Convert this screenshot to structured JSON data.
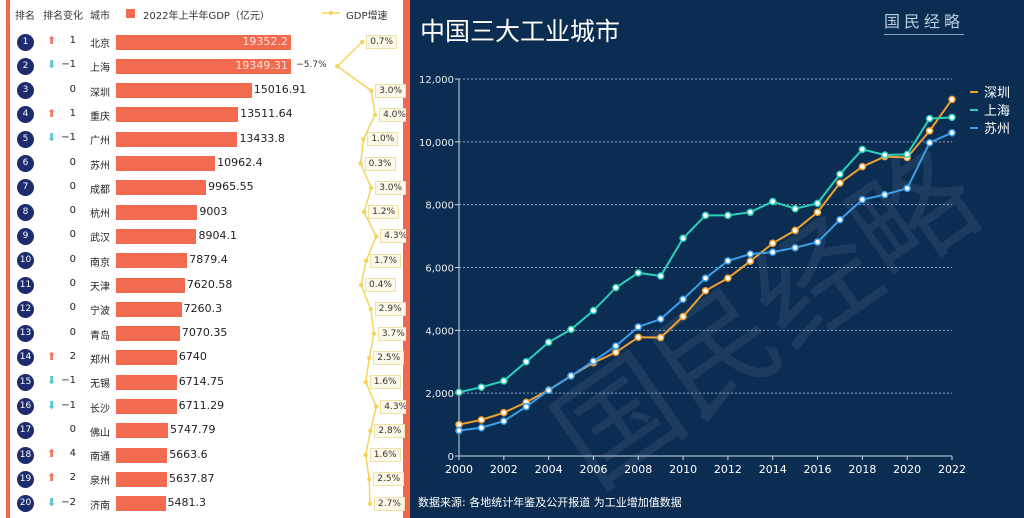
{
  "left": {
    "headers": {
      "rank": "排名",
      "change": "排名变化",
      "city": "城市",
      "gdp_legend": "2022年上半年GDP（亿元）",
      "growth_legend": "GDP增速"
    },
    "colors": {
      "bar": "#f26a50",
      "up": "#f07a60",
      "down": "#5bc8d8",
      "rank": "#1e2b6e",
      "growth": "#f5d45a"
    },
    "rows": [
      {
        "rank": "1",
        "dir": "up",
        "change": "1",
        "city": "北京",
        "gdp": 19352.2,
        "gdp_label": "19352.2",
        "growth": 0.7,
        "growth_label": "0.7%"
      },
      {
        "rank": "2",
        "dir": "down",
        "change": "−1",
        "city": "上海",
        "gdp": 19349.31,
        "gdp_label": "19349.31",
        "growth": -5.7,
        "growth_label": "−5.7%"
      },
      {
        "rank": "3",
        "dir": "none",
        "change": "0",
        "city": "深圳",
        "gdp": 15016.91,
        "gdp_label": "15016.91",
        "growth": 3.0,
        "growth_label": "3.0%"
      },
      {
        "rank": "4",
        "dir": "up",
        "change": "1",
        "city": "重庆",
        "gdp": 13511.64,
        "gdp_label": "13511.64",
        "growth": 4.0,
        "growth_label": "4.0%"
      },
      {
        "rank": "5",
        "dir": "down",
        "change": "−1",
        "city": "广州",
        "gdp": 13433.8,
        "gdp_label": "13433.8",
        "growth": 1.0,
        "growth_label": "1.0%"
      },
      {
        "rank": "6",
        "dir": "none",
        "change": "0",
        "city": "苏州",
        "gdp": 10962.4,
        "gdp_label": "10962.4",
        "growth": 0.3,
        "growth_label": "0.3%"
      },
      {
        "rank": "7",
        "dir": "none",
        "change": "0",
        "city": "成都",
        "gdp": 9965.55,
        "gdp_label": "9965.55",
        "growth": 3.0,
        "growth_label": "3.0%"
      },
      {
        "rank": "8",
        "dir": "none",
        "change": "0",
        "city": "杭州",
        "gdp": 9003,
        "gdp_label": "9003",
        "growth": 1.2,
        "growth_label": "1.2%"
      },
      {
        "rank": "9",
        "dir": "none",
        "change": "0",
        "city": "武汉",
        "gdp": 8904.1,
        "gdp_label": "8904.1",
        "growth": 4.3,
        "growth_label": "4.3%"
      },
      {
        "rank": "10",
        "dir": "none",
        "change": "0",
        "city": "南京",
        "gdp": 7879.4,
        "gdp_label": "7879.4",
        "growth": 1.7,
        "growth_label": "1.7%"
      },
      {
        "rank": "11",
        "dir": "none",
        "change": "0",
        "city": "天津",
        "gdp": 7620.58,
        "gdp_label": "7620.58",
        "growth": 0.4,
        "growth_label": "0.4%"
      },
      {
        "rank": "12",
        "dir": "none",
        "change": "0",
        "city": "宁波",
        "gdp": 7260.3,
        "gdp_label": "7260.3",
        "growth": 2.9,
        "growth_label": "2.9%"
      },
      {
        "rank": "13",
        "dir": "none",
        "change": "0",
        "city": "青岛",
        "gdp": 7070.35,
        "gdp_label": "7070.35",
        "growth": 3.7,
        "growth_label": "3.7%"
      },
      {
        "rank": "14",
        "dir": "up",
        "change": "2",
        "city": "郑州",
        "gdp": 6740,
        "gdp_label": "6740",
        "growth": 2.5,
        "growth_label": "2.5%"
      },
      {
        "rank": "15",
        "dir": "down",
        "change": "−1",
        "city": "无锡",
        "gdp": 6714.75,
        "gdp_label": "6714.75",
        "growth": 1.6,
        "growth_label": "1.6%"
      },
      {
        "rank": "16",
        "dir": "down",
        "change": "−1",
        "city": "长沙",
        "gdp": 6711.29,
        "gdp_label": "6711.29",
        "growth": 4.3,
        "growth_label": "4.3%"
      },
      {
        "rank": "17",
        "dir": "none",
        "change": "0",
        "city": "佛山",
        "gdp": 5747.79,
        "gdp_label": "5747.79",
        "growth": 2.8,
        "growth_label": "2.8%"
      },
      {
        "rank": "18",
        "dir": "up",
        "change": "4",
        "city": "南通",
        "gdp": 5663.6,
        "gdp_label": "5663.6",
        "growth": 1.6,
        "growth_label": "1.6%"
      },
      {
        "rank": "19",
        "dir": "up",
        "change": "2",
        "city": "泉州",
        "gdp": 5637.87,
        "gdp_label": "5637.87",
        "growth": 2.5,
        "growth_label": "2.5%"
      },
      {
        "rank": "20",
        "dir": "down",
        "change": "−2",
        "city": "济南",
        "gdp": 5481.3,
        "gdp_label": "5481.3",
        "growth": 2.7,
        "growth_label": "2.7%"
      }
    ]
  },
  "right": {
    "title": "中国三大工业城市",
    "logo": "国民经略",
    "source": "数据来源: 各地统计年鉴及公开报道  为工业增加值数据",
    "watermark": "国民经略"
  },
  "chart_data": {
    "type": "line",
    "title": "中国三大工业城市",
    "x": [
      2000,
      2001,
      2002,
      2003,
      2004,
      2005,
      2006,
      2007,
      2008,
      2009,
      2010,
      2011,
      2012,
      2013,
      2014,
      2015,
      2016,
      2017,
      2018,
      2019,
      2020,
      2021,
      2022
    ],
    "x_ticks": [
      "2000",
      "2002",
      "2004",
      "2006",
      "2008",
      "2010",
      "2012",
      "2014",
      "2016",
      "2018",
      "2020",
      "2022"
    ],
    "y_ticks": [
      "0",
      "2,000",
      "4,000",
      "6,000",
      "8,000",
      "10,000",
      "12,000"
    ],
    "ylim": [
      0,
      12000
    ],
    "grid": "horizontal dotted",
    "legend": "top-right",
    "series": [
      {
        "name": "深圳",
        "color": "#f0a030",
        "values": [
          1000,
          1150,
          1380,
          1710,
          2100,
          2550,
          2970,
          3300,
          3780,
          3770,
          4440,
          5260,
          5660,
          6200,
          6770,
          7180,
          7760,
          8690,
          9210,
          9530,
          9500,
          10350,
          11350
        ]
      },
      {
        "name": "上海",
        "color": "#2ad0b8",
        "values": [
          2030,
          2190,
          2390,
          3000,
          3620,
          4030,
          4630,
          5360,
          5830,
          5730,
          6930,
          7660,
          7660,
          7760,
          8100,
          7870,
          8040,
          8970,
          9760,
          9580,
          9600,
          10740,
          10780
        ]
      },
      {
        "name": "苏州",
        "color": "#3a9ee8",
        "values": [
          810,
          900,
          1110,
          1570,
          2090,
          2550,
          3020,
          3500,
          4110,
          4360,
          4990,
          5660,
          6210,
          6430,
          6490,
          6630,
          6810,
          7520,
          8160,
          8320,
          8520,
          9970,
          10290
        ]
      }
    ]
  }
}
